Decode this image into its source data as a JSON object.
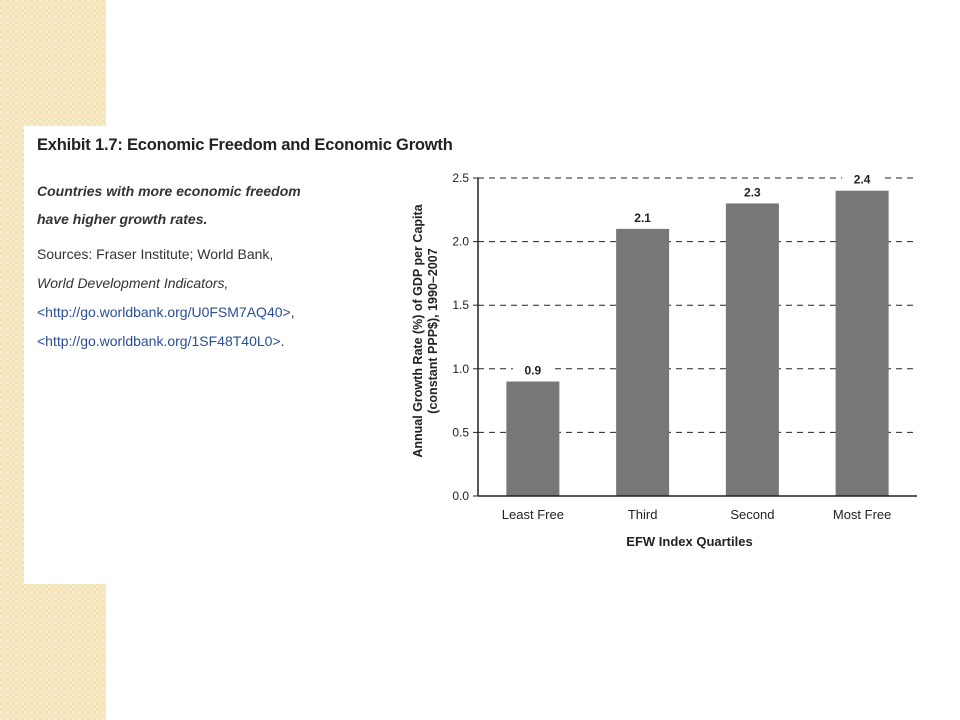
{
  "exhibit": {
    "title": "Exhibit 1.7:  Economic Freedom and Economic Growth",
    "subtitle_line1": "Countries with more economic freedom",
    "subtitle_line2": "have higher growth rates.",
    "sources_line1": "Sources:  Fraser Institute; World Bank,",
    "sources_publication": "World Development Indicators,",
    "sources_link1": "<http://go.worldbank.org/U0FSM7AQ40>",
    "sources_link1_suffix": ",",
    "sources_link2": "<http://go.worldbank.org/1SF48T40L0>",
    "sources_link2_suffix": "."
  },
  "colors": {
    "bar": "#767778",
    "grid": "#222222",
    "link": "#2a4e96",
    "side_strip": "#f3e2b3"
  },
  "chart_data": {
    "type": "bar",
    "categories": [
      "Least Free",
      "Third",
      "Second",
      "Most Free"
    ],
    "values": [
      0.9,
      2.1,
      2.3,
      2.4
    ],
    "data_labels": [
      "0.9",
      "2.1",
      "2.3",
      "2.4"
    ],
    "title": "",
    "xlabel": "EFW Index Quartiles",
    "ylabel_line1": "Annual Growth Rate (%) of GDP per Capita",
    "ylabel_line2": "(constant PPP$), 1990–2007",
    "ylim": [
      0,
      2.5
    ],
    "yticks": [
      0,
      0.5,
      1.0,
      1.5,
      2.0,
      2.5
    ],
    "ytick_labels": [
      "0.0",
      "0.5",
      "1.0",
      "1.5",
      "2.0",
      "2.5"
    ],
    "grid": "dashed horizontal",
    "legend": "none"
  }
}
